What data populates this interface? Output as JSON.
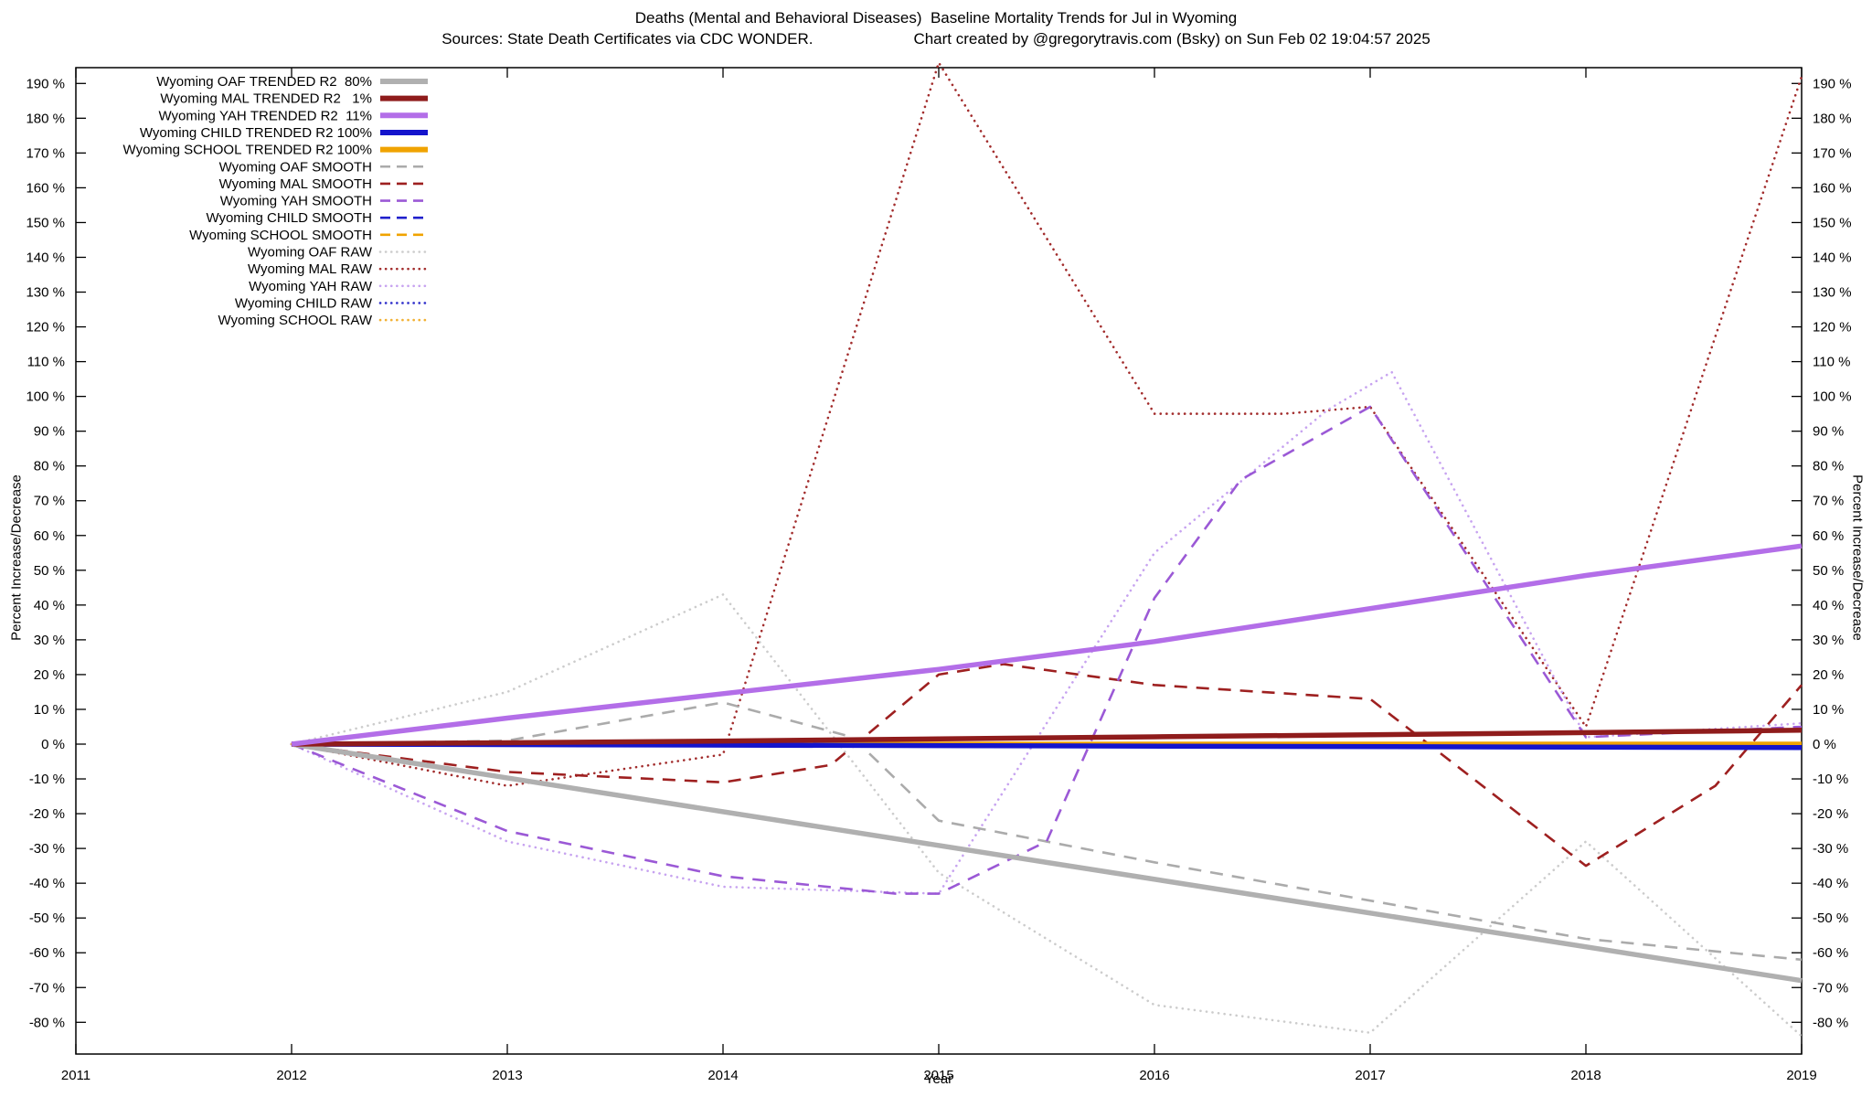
{
  "title": {
    "line1": "Deaths (Mental and Behavioral Diseases)  Baseline Mortality Trends for Jul in Wyoming",
    "sources": "Sources: State Death Certificates via CDC WONDER.",
    "credit": "Chart created by @gregorytravis.com (Bsky) on Sun Feb 02 19:04:57 2025"
  },
  "axes": {
    "x": {
      "label": "Year",
      "min": 2011,
      "max": 2019,
      "ticks": [
        2011,
        2012,
        2013,
        2014,
        2015,
        2016,
        2017,
        2018,
        2019
      ]
    },
    "y": {
      "label": "Percent Increase/Decrease",
      "tick_min": -80,
      "tick_max": 190,
      "tick_step": 10,
      "unit": "%"
    }
  },
  "chart_data": {
    "type": "line",
    "title": "Deaths (Mental and Behavioral Diseases)  Baseline Mortality Trends for Jul in Wyoming",
    "xlabel": "Year",
    "ylabel": "Percent Increase/Decrease",
    "x_range": [
      2011,
      2019
    ],
    "y_tick_range": [
      -80,
      190
    ],
    "grid": false,
    "legend_position": "top-left",
    "series": [
      {
        "label": "Wyoming OAF TRENDED R2  80%",
        "group": "OAF",
        "style": "trended",
        "r2": "80%",
        "color": "#b0b0b0",
        "points": [
          [
            2012,
            0
          ],
          [
            2019,
            -68
          ]
        ]
      },
      {
        "label": "Wyoming MAL TRENDED R2   1%",
        "group": "MAL",
        "style": "trended",
        "r2": "1%",
        "color": "#8f1c1c",
        "points": [
          [
            2012,
            0
          ],
          [
            2013,
            0.4
          ],
          [
            2014,
            0.9
          ],
          [
            2015,
            1.5
          ],
          [
            2016,
            2.1
          ],
          [
            2017,
            2.7
          ],
          [
            2018,
            3.3
          ],
          [
            2019,
            4
          ]
        ]
      },
      {
        "label": "Wyoming YAH TRENDED R2  11%",
        "group": "YAH",
        "style": "trended",
        "r2": "11%",
        "color": "#b36ee8",
        "points": [
          [
            2012,
            0
          ],
          [
            2013,
            7.5
          ],
          [
            2014,
            14.5
          ],
          [
            2015,
            21.5
          ],
          [
            2016,
            29.5
          ],
          [
            2017,
            39
          ],
          [
            2018,
            48.5
          ],
          [
            2019,
            57
          ]
        ]
      },
      {
        "label": "Wyoming CHILD TRENDED R2 100%",
        "group": "CHILD",
        "style": "trended",
        "r2": "100%",
        "color": "#1414cc",
        "points": [
          [
            2012,
            0
          ],
          [
            2019,
            -1
          ]
        ]
      },
      {
        "label": "Wyoming SCHOOL TRENDED R2 100%",
        "group": "SCHOOL",
        "style": "trended",
        "r2": "100%",
        "color": "#f0a300",
        "points": [
          [
            2012,
            0
          ],
          [
            2019,
            0
          ]
        ]
      },
      {
        "label": "Wyoming OAF SMOOTH",
        "group": "OAF",
        "style": "smooth",
        "color": "#ababab",
        "points": [
          [
            2012,
            0
          ],
          [
            2013,
            1
          ],
          [
            2014,
            12
          ],
          [
            2014.6,
            2
          ],
          [
            2015,
            -22
          ],
          [
            2016,
            -34
          ],
          [
            2017,
            -45
          ],
          [
            2018,
            -56
          ],
          [
            2019,
            -62
          ]
        ]
      },
      {
        "label": "Wyoming MAL SMOOTH",
        "group": "MAL",
        "style": "smooth",
        "color": "#9e2020",
        "points": [
          [
            2012,
            0
          ],
          [
            2013,
            -8
          ],
          [
            2014,
            -11
          ],
          [
            2014.5,
            -6
          ],
          [
            2015,
            20
          ],
          [
            2015.3,
            23
          ],
          [
            2016,
            17
          ],
          [
            2017,
            13
          ],
          [
            2018,
            -35
          ],
          [
            2018.6,
            -12
          ],
          [
            2019,
            17
          ]
        ]
      },
      {
        "label": "Wyoming YAH SMOOTH",
        "group": "YAH",
        "style": "smooth",
        "color": "#9b59d6",
        "points": [
          [
            2012,
            0
          ],
          [
            2013,
            -25
          ],
          [
            2014,
            -38
          ],
          [
            2014.8,
            -43
          ],
          [
            2015,
            -43
          ],
          [
            2015.5,
            -28
          ],
          [
            2016,
            42
          ],
          [
            2016.4,
            76
          ],
          [
            2017,
            97
          ],
          [
            2017.6,
            40
          ],
          [
            2018,
            2
          ],
          [
            2019,
            5
          ]
        ]
      },
      {
        "label": "Wyoming CHILD SMOOTH",
        "group": "CHILD",
        "style": "smooth",
        "color": "#2020cc",
        "points": [
          [
            2012,
            0
          ],
          [
            2019,
            0
          ]
        ]
      },
      {
        "label": "Wyoming SCHOOL SMOOTH",
        "group": "SCHOOL",
        "style": "smooth",
        "color": "#f0a300",
        "points": [
          [
            2012,
            0
          ],
          [
            2019,
            0
          ]
        ]
      },
      {
        "label": "Wyoming OAF RAW",
        "group": "OAF",
        "style": "raw",
        "color": "#cccccc",
        "points": [
          [
            2012,
            0
          ],
          [
            2013,
            15
          ],
          [
            2014,
            43
          ],
          [
            2015,
            -37
          ],
          [
            2016,
            -75
          ],
          [
            2017,
            -83
          ],
          [
            2018,
            -28
          ],
          [
            2019,
            -84
          ]
        ]
      },
      {
        "label": "Wyoming MAL RAW",
        "group": "MAL",
        "style": "raw",
        "color": "#a22c2c",
        "points": [
          [
            2012,
            0
          ],
          [
            2013,
            -12
          ],
          [
            2014,
            -3
          ],
          [
            2015,
            196
          ],
          [
            2016,
            95
          ],
          [
            2016.6,
            95
          ],
          [
            2017,
            97
          ],
          [
            2018,
            5
          ],
          [
            2019,
            192
          ]
        ]
      },
      {
        "label": "Wyoming YAH RAW",
        "group": "YAH",
        "style": "raw",
        "color": "#c7a3f0",
        "points": [
          [
            2012,
            0
          ],
          [
            2013,
            -28
          ],
          [
            2014,
            -41
          ],
          [
            2015,
            -43
          ],
          [
            2016,
            55
          ],
          [
            2016.8,
            96
          ],
          [
            2017.1,
            107
          ],
          [
            2018,
            2
          ],
          [
            2019,
            6
          ]
        ]
      },
      {
        "label": "Wyoming CHILD RAW",
        "group": "CHILD",
        "style": "raw",
        "color": "#3333cc",
        "points": [
          [
            2012,
            0
          ],
          [
            2019,
            0
          ]
        ]
      },
      {
        "label": "Wyoming SCHOOL RAW",
        "group": "SCHOOL",
        "style": "raw",
        "color": "#f2b133",
        "points": [
          [
            2012,
            0
          ],
          [
            2019,
            0
          ]
        ]
      }
    ]
  }
}
